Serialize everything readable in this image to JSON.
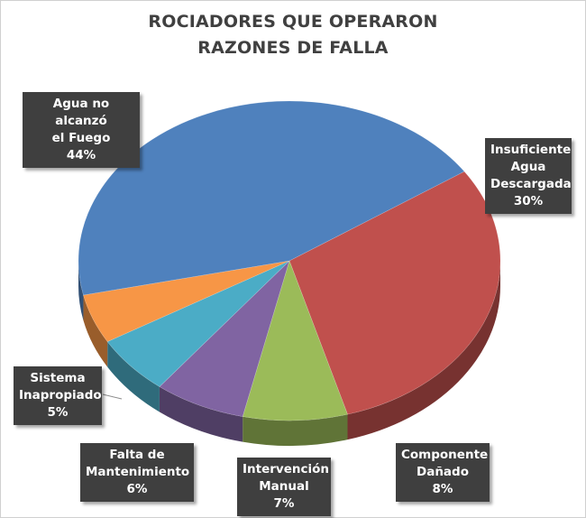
{
  "chart_data": {
    "type": "pie",
    "title": "ROCIADORES QUE OPERARON",
    "subtitle": "RAZONES DE FALLA",
    "slices": [
      {
        "lines": [
          "Insuficiente",
          "Agua",
          "Descargada"
        ],
        "percent_label": "30%",
        "value": 30,
        "color": "#c0504d"
      },
      {
        "lines": [
          "Componente",
          "Dañado"
        ],
        "percent_label": "8%",
        "value": 8,
        "color": "#9bbb59"
      },
      {
        "lines": [
          "Intervención",
          "Manual"
        ],
        "percent_label": "7%",
        "value": 7,
        "color": "#8064a2"
      },
      {
        "lines": [
          "Falta de",
          "Mantenimiento"
        ],
        "percent_label": "6%",
        "value": 6,
        "color": "#4bacc6"
      },
      {
        "lines": [
          "Sistema",
          "Inapropiado"
        ],
        "percent_label": "5%",
        "value": 5,
        "color": "#f79646"
      },
      {
        "lines": [
          "Agua no alcanzó",
          "el Fuego"
        ],
        "percent_label": "44%",
        "value": 44,
        "color": "#4f81bd"
      }
    ]
  }
}
